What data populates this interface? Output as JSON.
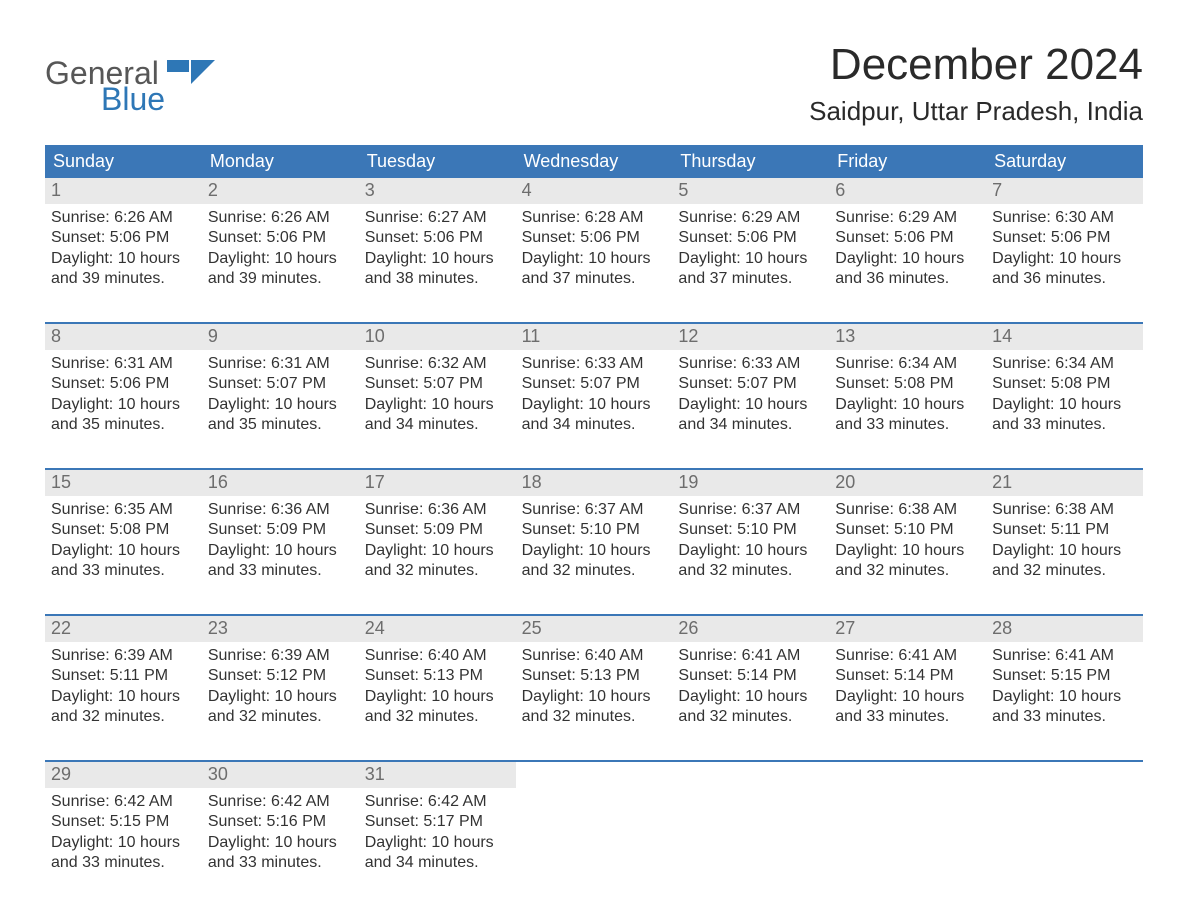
{
  "logo": {
    "line1": "General",
    "line2": "Blue"
  },
  "title": "December 2024",
  "location": "Saidpur, Uttar Pradesh, India",
  "colors": {
    "header_blue": "#3b77b7",
    "daynum_strip": "#e9e9e9",
    "text_dark": "#2b2b2b",
    "text_gray": "#6d6d6d",
    "logo_gray": "#575757",
    "logo_blue": "#2e77b6",
    "background": "#ffffff"
  },
  "typography": {
    "title_fontsize_pt": 33,
    "location_fontsize_pt": 20,
    "weekday_fontsize_pt": 14,
    "daynum_fontsize_pt": 14,
    "body_fontsize_pt": 12,
    "font_family": "Arial"
  },
  "weekdays": [
    "Sunday",
    "Monday",
    "Tuesday",
    "Wednesday",
    "Thursday",
    "Friday",
    "Saturday"
  ],
  "days": [
    {
      "n": "1",
      "sunrise": "Sunrise: 6:26 AM",
      "sunset": "Sunset: 5:06 PM",
      "dl1": "Daylight: 10 hours",
      "dl2": "and 39 minutes."
    },
    {
      "n": "2",
      "sunrise": "Sunrise: 6:26 AM",
      "sunset": "Sunset: 5:06 PM",
      "dl1": "Daylight: 10 hours",
      "dl2": "and 39 minutes."
    },
    {
      "n": "3",
      "sunrise": "Sunrise: 6:27 AM",
      "sunset": "Sunset: 5:06 PM",
      "dl1": "Daylight: 10 hours",
      "dl2": "and 38 minutes."
    },
    {
      "n": "4",
      "sunrise": "Sunrise: 6:28 AM",
      "sunset": "Sunset: 5:06 PM",
      "dl1": "Daylight: 10 hours",
      "dl2": "and 37 minutes."
    },
    {
      "n": "5",
      "sunrise": "Sunrise: 6:29 AM",
      "sunset": "Sunset: 5:06 PM",
      "dl1": "Daylight: 10 hours",
      "dl2": "and 37 minutes."
    },
    {
      "n": "6",
      "sunrise": "Sunrise: 6:29 AM",
      "sunset": "Sunset: 5:06 PM",
      "dl1": "Daylight: 10 hours",
      "dl2": "and 36 minutes."
    },
    {
      "n": "7",
      "sunrise": "Sunrise: 6:30 AM",
      "sunset": "Sunset: 5:06 PM",
      "dl1": "Daylight: 10 hours",
      "dl2": "and 36 minutes."
    },
    {
      "n": "8",
      "sunrise": "Sunrise: 6:31 AM",
      "sunset": "Sunset: 5:06 PM",
      "dl1": "Daylight: 10 hours",
      "dl2": "and 35 minutes."
    },
    {
      "n": "9",
      "sunrise": "Sunrise: 6:31 AM",
      "sunset": "Sunset: 5:07 PM",
      "dl1": "Daylight: 10 hours",
      "dl2": "and 35 minutes."
    },
    {
      "n": "10",
      "sunrise": "Sunrise: 6:32 AM",
      "sunset": "Sunset: 5:07 PM",
      "dl1": "Daylight: 10 hours",
      "dl2": "and 34 minutes."
    },
    {
      "n": "11",
      "sunrise": "Sunrise: 6:33 AM",
      "sunset": "Sunset: 5:07 PM",
      "dl1": "Daylight: 10 hours",
      "dl2": "and 34 minutes."
    },
    {
      "n": "12",
      "sunrise": "Sunrise: 6:33 AM",
      "sunset": "Sunset: 5:07 PM",
      "dl1": "Daylight: 10 hours",
      "dl2": "and 34 minutes."
    },
    {
      "n": "13",
      "sunrise": "Sunrise: 6:34 AM",
      "sunset": "Sunset: 5:08 PM",
      "dl1": "Daylight: 10 hours",
      "dl2": "and 33 minutes."
    },
    {
      "n": "14",
      "sunrise": "Sunrise: 6:34 AM",
      "sunset": "Sunset: 5:08 PM",
      "dl1": "Daylight: 10 hours",
      "dl2": "and 33 minutes."
    },
    {
      "n": "15",
      "sunrise": "Sunrise: 6:35 AM",
      "sunset": "Sunset: 5:08 PM",
      "dl1": "Daylight: 10 hours",
      "dl2": "and 33 minutes."
    },
    {
      "n": "16",
      "sunrise": "Sunrise: 6:36 AM",
      "sunset": "Sunset: 5:09 PM",
      "dl1": "Daylight: 10 hours",
      "dl2": "and 33 minutes."
    },
    {
      "n": "17",
      "sunrise": "Sunrise: 6:36 AM",
      "sunset": "Sunset: 5:09 PM",
      "dl1": "Daylight: 10 hours",
      "dl2": "and 32 minutes."
    },
    {
      "n": "18",
      "sunrise": "Sunrise: 6:37 AM",
      "sunset": "Sunset: 5:10 PM",
      "dl1": "Daylight: 10 hours",
      "dl2": "and 32 minutes."
    },
    {
      "n": "19",
      "sunrise": "Sunrise: 6:37 AM",
      "sunset": "Sunset: 5:10 PM",
      "dl1": "Daylight: 10 hours",
      "dl2": "and 32 minutes."
    },
    {
      "n": "20",
      "sunrise": "Sunrise: 6:38 AM",
      "sunset": "Sunset: 5:10 PM",
      "dl1": "Daylight: 10 hours",
      "dl2": "and 32 minutes."
    },
    {
      "n": "21",
      "sunrise": "Sunrise: 6:38 AM",
      "sunset": "Sunset: 5:11 PM",
      "dl1": "Daylight: 10 hours",
      "dl2": "and 32 minutes."
    },
    {
      "n": "22",
      "sunrise": "Sunrise: 6:39 AM",
      "sunset": "Sunset: 5:11 PM",
      "dl1": "Daylight: 10 hours",
      "dl2": "and 32 minutes."
    },
    {
      "n": "23",
      "sunrise": "Sunrise: 6:39 AM",
      "sunset": "Sunset: 5:12 PM",
      "dl1": "Daylight: 10 hours",
      "dl2": "and 32 minutes."
    },
    {
      "n": "24",
      "sunrise": "Sunrise: 6:40 AM",
      "sunset": "Sunset: 5:13 PM",
      "dl1": "Daylight: 10 hours",
      "dl2": "and 32 minutes."
    },
    {
      "n": "25",
      "sunrise": "Sunrise: 6:40 AM",
      "sunset": "Sunset: 5:13 PM",
      "dl1": "Daylight: 10 hours",
      "dl2": "and 32 minutes."
    },
    {
      "n": "26",
      "sunrise": "Sunrise: 6:41 AM",
      "sunset": "Sunset: 5:14 PM",
      "dl1": "Daylight: 10 hours",
      "dl2": "and 32 minutes."
    },
    {
      "n": "27",
      "sunrise": "Sunrise: 6:41 AM",
      "sunset": "Sunset: 5:14 PM",
      "dl1": "Daylight: 10 hours",
      "dl2": "and 33 minutes."
    },
    {
      "n": "28",
      "sunrise": "Sunrise: 6:41 AM",
      "sunset": "Sunset: 5:15 PM",
      "dl1": "Daylight: 10 hours",
      "dl2": "and 33 minutes."
    },
    {
      "n": "29",
      "sunrise": "Sunrise: 6:42 AM",
      "sunset": "Sunset: 5:15 PM",
      "dl1": "Daylight: 10 hours",
      "dl2": "and 33 minutes."
    },
    {
      "n": "30",
      "sunrise": "Sunrise: 6:42 AM",
      "sunset": "Sunset: 5:16 PM",
      "dl1": "Daylight: 10 hours",
      "dl2": "and 33 minutes."
    },
    {
      "n": "31",
      "sunrise": "Sunrise: 6:42 AM",
      "sunset": "Sunset: 5:17 PM",
      "dl1": "Daylight: 10 hours",
      "dl2": "and 34 minutes."
    }
  ],
  "layout": {
    "columns": 7,
    "rows": 5,
    "start_weekday_index": 0,
    "trailing_empty_cells": 4
  }
}
